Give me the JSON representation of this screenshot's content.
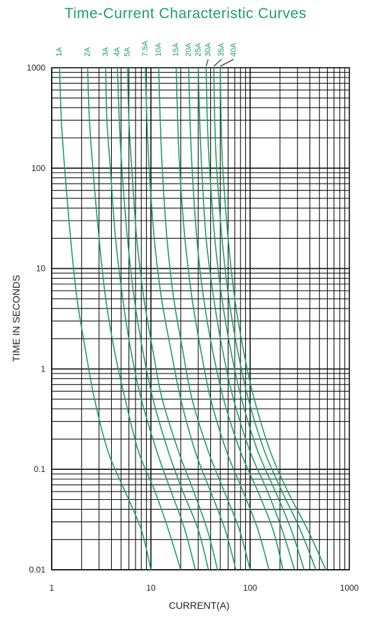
{
  "chart_data": {
    "type": "line",
    "title": "Time-Current Characteristic Curves",
    "xlabel": "CURRENT(A)",
    "ylabel": "TIME IN SECONDS",
    "xscale": "log",
    "yscale": "log",
    "xlim": [
      1,
      1000
    ],
    "ylim": [
      0.01,
      1000
    ],
    "x_ticks": [
      "1",
      "10",
      "100",
      "1000"
    ],
    "y_ticks": [
      "1000",
      "100",
      "10",
      "1",
      "0.1",
      "0.01"
    ],
    "grid": true,
    "line_color": "#1f9e63",
    "series": [
      {
        "name": "1A",
        "points": [
          [
            1.2,
            1000
          ],
          [
            1.25,
            300
          ],
          [
            1.35,
            100
          ],
          [
            1.55,
            20
          ],
          [
            1.8,
            5
          ],
          [
            2.2,
            1.5
          ],
          [
            2.7,
            0.5
          ],
          [
            3.7,
            0.15
          ],
          [
            5.5,
            0.06
          ],
          [
            8,
            0.025
          ],
          [
            10,
            0.01
          ]
        ]
      },
      {
        "name": "2A",
        "points": [
          [
            2.3,
            1000
          ],
          [
            2.4,
            300
          ],
          [
            2.6,
            100
          ],
          [
            3,
            20
          ],
          [
            3.5,
            5
          ],
          [
            4.3,
            1.5
          ],
          [
            5.5,
            0.5
          ],
          [
            7.5,
            0.15
          ],
          [
            11,
            0.06
          ],
          [
            15,
            0.025
          ],
          [
            20,
            0.01
          ]
        ]
      },
      {
        "name": "3A",
        "points": [
          [
            3.5,
            1000
          ],
          [
            3.6,
            300
          ],
          [
            3.9,
            100
          ],
          [
            4.4,
            20
          ],
          [
            5.2,
            5
          ],
          [
            6.3,
            1.5
          ],
          [
            8,
            0.5
          ],
          [
            11.5,
            0.15
          ],
          [
            16,
            0.06
          ],
          [
            22,
            0.025
          ],
          [
            28,
            0.01
          ]
        ]
      },
      {
        "name": "4A",
        "points": [
          [
            4.6,
            1000
          ],
          [
            4.8,
            300
          ],
          [
            5.1,
            100
          ],
          [
            5.8,
            20
          ],
          [
            6.8,
            5
          ],
          [
            8.3,
            1.5
          ],
          [
            10.5,
            0.5
          ],
          [
            15,
            0.15
          ],
          [
            21,
            0.06
          ],
          [
            30,
            0.025
          ],
          [
            38,
            0.01
          ]
        ]
      },
      {
        "name": "5A",
        "points": [
          [
            5.8,
            1000
          ],
          [
            6,
            300
          ],
          [
            6.4,
            100
          ],
          [
            7.2,
            20
          ],
          [
            8.5,
            5
          ],
          [
            10.5,
            1.5
          ],
          [
            13,
            0.5
          ],
          [
            19,
            0.15
          ],
          [
            27,
            0.06
          ],
          [
            37,
            0.025
          ],
          [
            47,
            0.01
          ]
        ]
      },
      {
        "name": "7.5A",
        "points": [
          [
            8.8,
            1000
          ],
          [
            9.1,
            300
          ],
          [
            9.6,
            100
          ],
          [
            10.8,
            20
          ],
          [
            12.8,
            5
          ],
          [
            16,
            1.5
          ],
          [
            20,
            0.5
          ],
          [
            28,
            0.15
          ],
          [
            40,
            0.06
          ],
          [
            56,
            0.025
          ],
          [
            72,
            0.01
          ]
        ]
      },
      {
        "name": "10A",
        "points": [
          [
            12,
            1000
          ],
          [
            12.4,
            300
          ],
          [
            13,
            100
          ],
          [
            14.5,
            20
          ],
          [
            17,
            5
          ],
          [
            21,
            1.5
          ],
          [
            26,
            0.5
          ],
          [
            38,
            0.15
          ],
          [
            55,
            0.06
          ],
          [
            78,
            0.025
          ],
          [
            100,
            0.01
          ]
        ]
      },
      {
        "name": "15A",
        "points": [
          [
            18,
            1000
          ],
          [
            18.6,
            300
          ],
          [
            19.5,
            100
          ],
          [
            22,
            20
          ],
          [
            26,
            5
          ],
          [
            32,
            1.5
          ],
          [
            40,
            0.5
          ],
          [
            58,
            0.15
          ],
          [
            85,
            0.06
          ],
          [
            120,
            0.025
          ],
          [
            155,
            0.01
          ]
        ]
      },
      {
        "name": "20A",
        "points": [
          [
            24,
            1000
          ],
          [
            24.8,
            300
          ],
          [
            26,
            100
          ],
          [
            29,
            20
          ],
          [
            34,
            5
          ],
          [
            42,
            1.5
          ],
          [
            54,
            0.5
          ],
          [
            80,
            0.15
          ],
          [
            120,
            0.06
          ],
          [
            170,
            0.025
          ],
          [
            215,
            0.01
          ]
        ]
      },
      {
        "name": "25A",
        "points": [
          [
            30,
            1000
          ],
          [
            31,
            300
          ],
          [
            32.5,
            100
          ],
          [
            36,
            20
          ],
          [
            43,
            5
          ],
          [
            53,
            1.5
          ],
          [
            68,
            0.5
          ],
          [
            100,
            0.15
          ],
          [
            150,
            0.06
          ],
          [
            210,
            0.025
          ],
          [
            280,
            0.01
          ]
        ]
      },
      {
        "name": "30A",
        "points": [
          [
            36,
            1000
          ],
          [
            37,
            300
          ],
          [
            39,
            100
          ],
          [
            44,
            20
          ],
          [
            52,
            5
          ],
          [
            64,
            1.5
          ],
          [
            82,
            0.5
          ],
          [
            120,
            0.15
          ],
          [
            180,
            0.06
          ],
          [
            260,
            0.025
          ],
          [
            350,
            0.01
          ]
        ]
      },
      {
        "name": "35A",
        "points": [
          [
            43,
            1000
          ],
          [
            44,
            300
          ],
          [
            46,
            100
          ],
          [
            52,
            20
          ],
          [
            61,
            5
          ],
          [
            75,
            1.5
          ],
          [
            96,
            0.5
          ],
          [
            140,
            0.15
          ],
          [
            210,
            0.06
          ],
          [
            320,
            0.025
          ],
          [
            460,
            0.01
          ]
        ]
      },
      {
        "name": "40A",
        "points": [
          [
            50,
            1000
          ],
          [
            51,
            300
          ],
          [
            53,
            100
          ],
          [
            60,
            20
          ],
          [
            70,
            5
          ],
          [
            86,
            1.5
          ],
          [
            110,
            0.5
          ],
          [
            160,
            0.15
          ],
          [
            240,
            0.06
          ],
          [
            380,
            0.025
          ],
          [
            580,
            0.01
          ]
        ]
      }
    ]
  }
}
